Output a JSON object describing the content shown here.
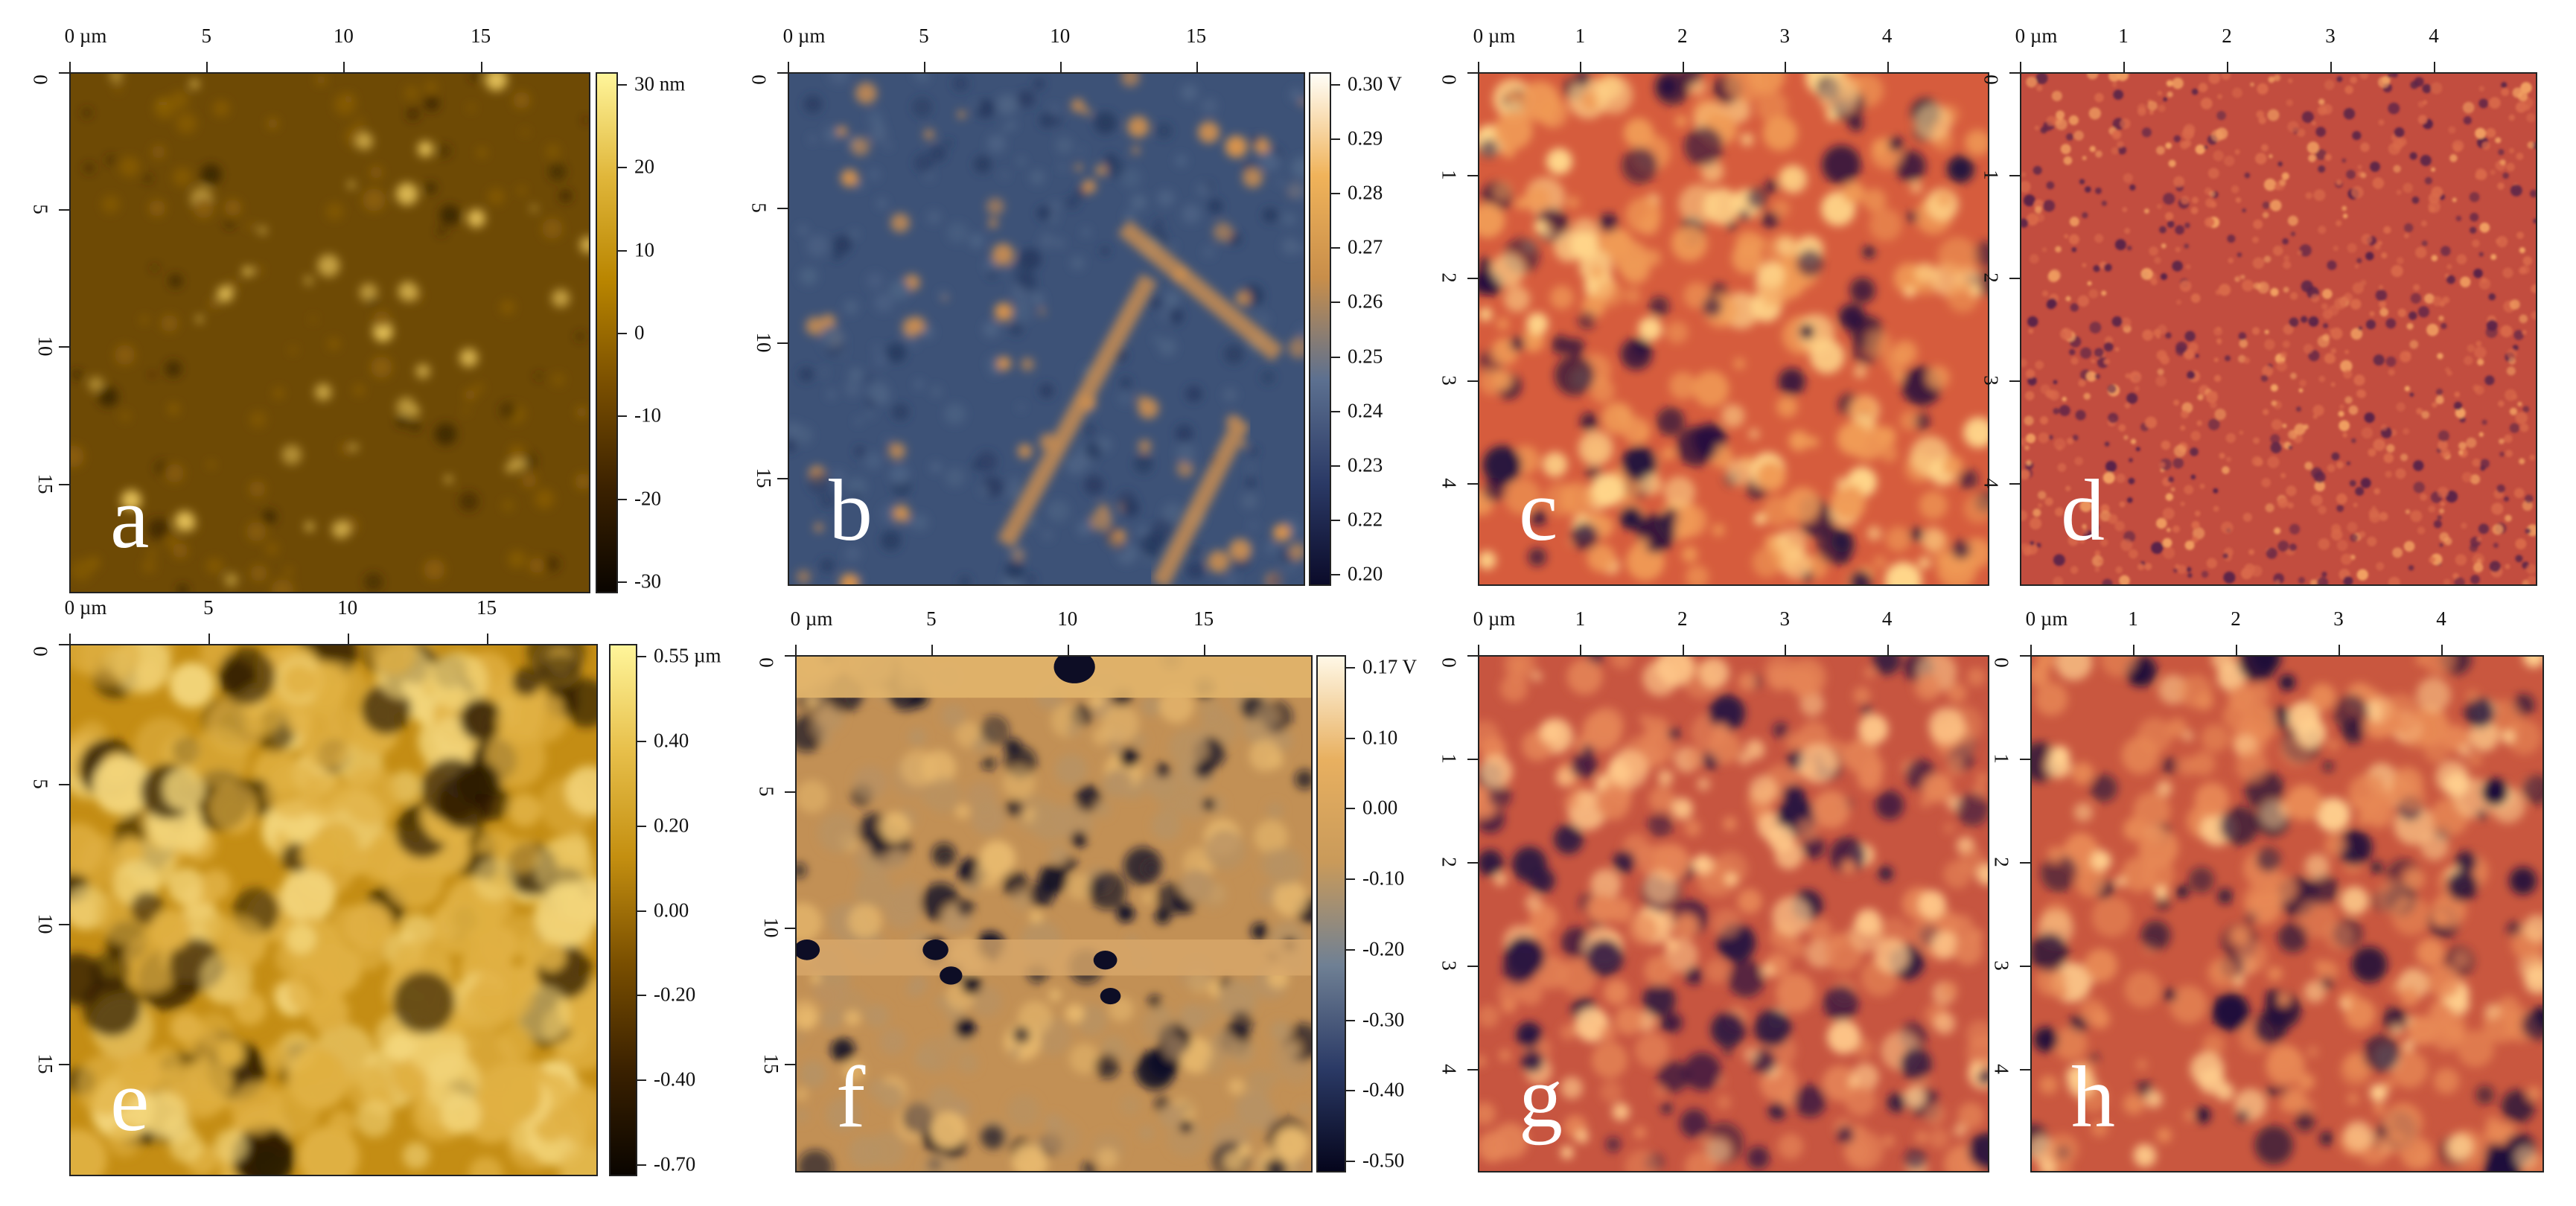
{
  "figure": {
    "panels": [
      {
        "id": "a",
        "letter": "a",
        "xticks": [
          "0 µm",
          "5",
          "10",
          "15"
        ],
        "yticks": [
          "0",
          "5",
          "10",
          "15"
        ],
        "colorbar": {
          "ticks": [
            "30 nm",
            "20",
            "10",
            "0",
            "-10",
            "-20",
            "-30"
          ],
          "colors": [
            "#0a0500",
            "#3b2100",
            "#7a4f00",
            "#b98500",
            "#e0b63a",
            "#fff59a"
          ]
        },
        "palette": {
          "base": "#6e4a05",
          "mid": "#8a5e08",
          "spot": "#e6c25a",
          "dark": "#3c2602"
        }
      },
      {
        "id": "b",
        "letter": "b",
        "xticks": [
          "0 µm",
          "5",
          "10",
          "15"
        ],
        "yticks": [
          "0",
          "5",
          "10",
          "15"
        ],
        "colorbar": {
          "ticks": [
            "0.30 V",
            "0.29",
            "0.28",
            "0.27",
            "0.26",
            "0.25",
            "0.24",
            "0.23",
            "0.22",
            "0.20"
          ],
          "colors": [
            "#0b0b2a",
            "#2b3a66",
            "#5c7090",
            "#c88e4a",
            "#f0b35a",
            "#fffef8"
          ]
        },
        "palette": {
          "base": "#3d5277",
          "mid": "#4d6384",
          "spot": "#d9944d",
          "dark": "#283a5f"
        }
      },
      {
        "id": "c",
        "letter": "c",
        "xticks": [
          "0 µm",
          "1",
          "2",
          "3",
          "4"
        ],
        "yticks": [
          "0",
          "1",
          "2",
          "3",
          "4"
        ],
        "palette": {
          "base": "#d65c3d",
          "mid": "#f09a55",
          "spot": "#ffd68a",
          "dark": "#25123d"
        }
      },
      {
        "id": "d",
        "letter": "d",
        "xticks": [
          "0 µm",
          "1",
          "2",
          "3",
          "4"
        ],
        "yticks": [
          "0",
          "1",
          "2",
          "3",
          "4"
        ],
        "palette": {
          "base": "#c24d3f",
          "mid": "#d9694a",
          "spot": "#f2a162",
          "dark": "#5a2348"
        }
      },
      {
        "id": "e",
        "letter": "e",
        "xticks": [
          "0 µm",
          "5",
          "10",
          "15"
        ],
        "yticks": [
          "0",
          "5",
          "10",
          "15"
        ],
        "colorbar": {
          "ticks": [
            "0.55 µm",
            "0.40",
            "0.20",
            "0.00",
            "-0.20",
            "-0.40",
            "-0.70"
          ],
          "colors": [
            "#0a0500",
            "#3b2100",
            "#7a4f00",
            "#c48f10",
            "#e7bf4a",
            "#fff59a"
          ]
        },
        "palette": {
          "base": "#c48d14",
          "mid": "#e0b042",
          "spot": "#f3d57a",
          "dark": "#2b1a02"
        }
      },
      {
        "id": "f",
        "letter": "f",
        "xticks": [
          "0 µm",
          "5",
          "10",
          "15"
        ],
        "yticks": [
          "0",
          "5",
          "10",
          "15"
        ],
        "colorbar": {
          "ticks": [
            "0.17 V",
            "0.10",
            "0.00",
            "-0.10",
            "-0.20",
            "-0.30",
            "-0.40",
            "-0.50"
          ],
          "colors": [
            "#05051c",
            "#2b3a66",
            "#6f8094",
            "#c99a5a",
            "#e8b060",
            "#fff8e6"
          ]
        },
        "palette": {
          "base": "#c29055",
          "mid": "#b89263",
          "spot": "#e7b86d",
          "dark": "#0d0d25"
        }
      },
      {
        "id": "g",
        "letter": "g",
        "xticks": [
          "0 µm",
          "1",
          "2",
          "3",
          "4"
        ],
        "yticks": [
          "0",
          "1",
          "2",
          "3",
          "4"
        ],
        "palette": {
          "base": "#c75540",
          "mid": "#e58456",
          "spot": "#ffc98a",
          "dark": "#2a1440"
        }
      },
      {
        "id": "h",
        "letter": "h",
        "xticks": [
          "0 µm",
          "1",
          "2",
          "3",
          "4"
        ],
        "yticks": [
          "0",
          "1",
          "2",
          "3",
          "4"
        ],
        "palette": {
          "base": "#c9573f",
          "mid": "#e88955",
          "spot": "#ffcf8e",
          "dark": "#1c0e3a"
        }
      }
    ]
  }
}
